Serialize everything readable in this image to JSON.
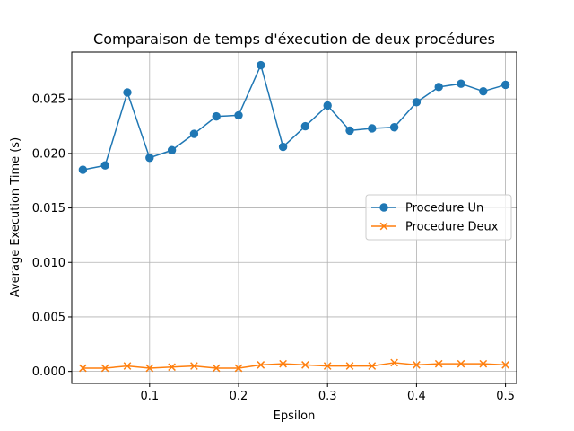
{
  "chart_data": {
    "type": "line",
    "title": "Comparaison de temps d'éxecution de deux procédures",
    "xlabel": "Epsilon",
    "ylabel": "Average Execution Time (s)",
    "xlim": [
      0.0125,
      0.5125
    ],
    "ylim": [
      -0.0011,
      0.0293
    ],
    "xticks": [
      0.1,
      0.2,
      0.3,
      0.4,
      0.5
    ],
    "xtick_labels": [
      "0.1",
      "0.2",
      "0.3",
      "0.4",
      "0.5"
    ],
    "yticks": [
      0.0,
      0.005,
      0.01,
      0.015,
      0.02,
      0.025
    ],
    "ytick_labels": [
      "0.000",
      "0.005",
      "0.010",
      "0.015",
      "0.020",
      "0.025"
    ],
    "grid": true,
    "legend_position": "center-right",
    "x": [
      0.025,
      0.05,
      0.075,
      0.1,
      0.125,
      0.15,
      0.175,
      0.2,
      0.225,
      0.25,
      0.275,
      0.3,
      0.325,
      0.35,
      0.375,
      0.4,
      0.425,
      0.45,
      0.475,
      0.5
    ],
    "series": [
      {
        "name": "Procedure Un",
        "color": "#1f77b4",
        "marker": "circle",
        "values": [
          0.0185,
          0.0189,
          0.0256,
          0.0196,
          0.0203,
          0.0218,
          0.0234,
          0.0235,
          0.0281,
          0.0206,
          0.0225,
          0.0244,
          0.0221,
          0.0223,
          0.0224,
          0.0247,
          0.0261,
          0.0264,
          0.0257,
          0.0263
        ]
      },
      {
        "name": "Procedure Deux",
        "color": "#ff7f0e",
        "marker": "x",
        "values": [
          0.0003,
          0.0003,
          0.0005,
          0.0003,
          0.0004,
          0.0005,
          0.0003,
          0.0003,
          0.0006,
          0.0007,
          0.0006,
          0.0005,
          0.0005,
          0.0005,
          0.0008,
          0.0006,
          0.0007,
          0.0007,
          0.0007,
          0.0006
        ]
      }
    ]
  }
}
